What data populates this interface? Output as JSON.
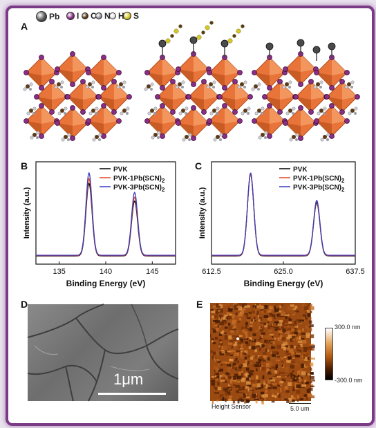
{
  "figure": {
    "panel_labels": {
      "a": "A",
      "b": "B",
      "c": "C",
      "d": "D",
      "e": "E"
    },
    "legend": {
      "items": [
        {
          "label": "Pb",
          "color": "#555555"
        },
        {
          "label": "I",
          "color": "#8a2e86"
        },
        {
          "label": "C",
          "color": "#5a3a1a"
        },
        {
          "label": "N",
          "color": "#9a9aa8"
        },
        {
          "label": "H",
          "color": "#e8e8e8"
        },
        {
          "label": "S",
          "color": "#d8c92a"
        }
      ]
    },
    "colors": {
      "frame": "#7b3a86",
      "octahedron": "#e8743a",
      "iodide": "#8a2e86"
    }
  },
  "chart_data": [
    {
      "type": "line",
      "panel": "B",
      "xlabel": "Binding Energy (eV)",
      "ylabel": "Intensity (a.u.)",
      "xlim": [
        132.5,
        147.5
      ],
      "xticks": [
        "135",
        "140",
        "145"
      ],
      "grid": false,
      "legend_position": "top-right",
      "series": [
        {
          "name": "PVK",
          "color": "#000000",
          "peaks": [
            {
              "x": 138.2,
              "h": 0.82
            },
            {
              "x": 143.1,
              "h": 0.62
            }
          ]
        },
        {
          "name": "PVK-1Pb(SCN)2",
          "color": "#e3452a",
          "peaks": [
            {
              "x": 138.2,
              "h": 0.87
            },
            {
              "x": 143.1,
              "h": 0.66
            }
          ]
        },
        {
          "name": "PVK-3Pb(SCN)2",
          "color": "#3a3ab8",
          "peaks": [
            {
              "x": 138.2,
              "h": 0.93
            },
            {
              "x": 143.1,
              "h": 0.71
            }
          ]
        }
      ]
    },
    {
      "type": "line",
      "panel": "C",
      "xlabel": "Binding Energy (eV)",
      "ylabel": "Intensity (a.u.)",
      "xlim": [
        612.5,
        637.5
      ],
      "xticks": [
        "612.5",
        "625.0",
        "637.5"
      ],
      "grid": false,
      "legend_position": "top-right",
      "series": [
        {
          "name": "PVK",
          "color": "#000000",
          "peaks": [
            {
              "x": 619.3,
              "h": 0.92
            },
            {
              "x": 630.8,
              "h": 0.6
            }
          ]
        },
        {
          "name": "PVK-1Pb(SCN)2",
          "color": "#e3452a",
          "peaks": [
            {
              "x": 619.3,
              "h": 0.92
            },
            {
              "x": 630.8,
              "h": 0.61
            }
          ]
        },
        {
          "name": "PVK-3Pb(SCN)2",
          "color": "#3a3ab8",
          "peaks": [
            {
              "x": 619.3,
              "h": 0.93
            },
            {
              "x": 630.8,
              "h": 0.62
            }
          ]
        }
      ]
    }
  ],
  "sem": {
    "scale_label": "1μm"
  },
  "afm": {
    "scale_max": "300.0 nm",
    "scale_min": "-300.0 nm",
    "channel": "Height Sensor",
    "scale_bar": "5.0 um"
  }
}
